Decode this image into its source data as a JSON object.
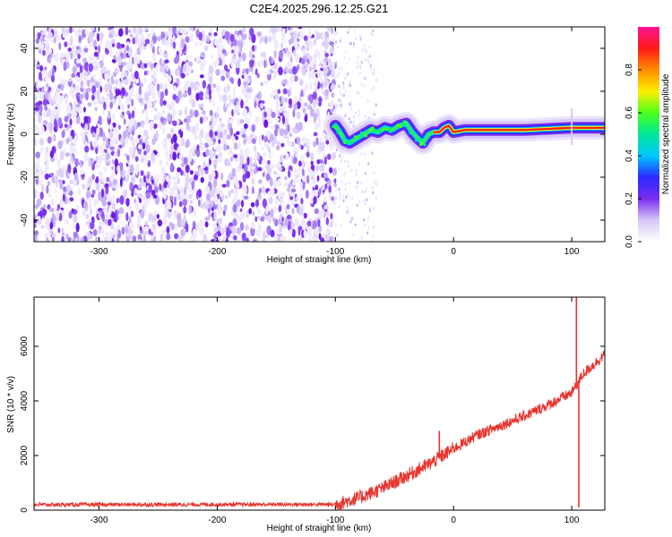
{
  "title": "C2E4.2025.296.12.25.G21",
  "chart_data": [
    {
      "type": "heatmap",
      "name": "spectrogram",
      "xlabel": "Height of straight line (km)",
      "ylabel": "Frequency (Hz)",
      "xlim": [
        -355,
        128
      ],
      "ylim": [
        -50,
        50
      ],
      "xticks": [
        -300,
        -200,
        -100,
        0,
        100
      ],
      "yticks": [
        -40,
        -20,
        0,
        20,
        40
      ],
      "noise_region_x": [
        -355,
        -100
      ],
      "sparse_noise_region_x": [
        -100,
        -65
      ],
      "ridge": [
        {
          "x": -100,
          "y": 4
        },
        {
          "x": -96,
          "y": 1
        },
        {
          "x": -92,
          "y": -3
        },
        {
          "x": -88,
          "y": -4
        },
        {
          "x": -82,
          "y": -2
        },
        {
          "x": -76,
          "y": 0
        },
        {
          "x": -70,
          "y": 2
        },
        {
          "x": -64,
          "y": 1
        },
        {
          "x": -58,
          "y": 3
        },
        {
          "x": -52,
          "y": 2
        },
        {
          "x": -46,
          "y": 4
        },
        {
          "x": -40,
          "y": 5
        },
        {
          "x": -35,
          "y": 1
        },
        {
          "x": -30,
          "y": -2
        },
        {
          "x": -26,
          "y": -4
        },
        {
          "x": -21,
          "y": 0
        },
        {
          "x": -17,
          "y": 1
        },
        {
          "x": -12,
          "y": 1
        },
        {
          "x": -8,
          "y": 3
        },
        {
          "x": -4,
          "y": 4
        },
        {
          "x": 0,
          "y": 1
        },
        {
          "x": 10,
          "y": 2
        },
        {
          "x": 20,
          "y": 2
        },
        {
          "x": 40,
          "y": 2
        },
        {
          "x": 60,
          "y": 2
        },
        {
          "x": 80,
          "y": 2.5
        },
        {
          "x": 100,
          "y": 3
        },
        {
          "x": 128,
          "y": 3
        }
      ]
    },
    {
      "type": "line",
      "name": "snr",
      "xlabel": "Height of straight line (km)",
      "ylabel": "SNR (10 * v/v)",
      "xlim": [
        -355,
        128
      ],
      "ylim": [
        0,
        7800
      ],
      "xticks": [
        -300,
        -200,
        -100,
        0,
        100
      ],
      "yticks": [
        0,
        2000,
        4000,
        6000
      ],
      "color": "#e8332c",
      "envelope": [
        {
          "x": -355,
          "y": 200
        },
        {
          "x": -100,
          "y": 210
        },
        {
          "x": -80,
          "y": 450
        },
        {
          "x": -60,
          "y": 800
        },
        {
          "x": -40,
          "y": 1250
        },
        {
          "x": -20,
          "y": 1700
        },
        {
          "x": 0,
          "y": 2250
        },
        {
          "x": 20,
          "y": 2750
        },
        {
          "x": 40,
          "y": 3100
        },
        {
          "x": 60,
          "y": 3450
        },
        {
          "x": 80,
          "y": 3850
        },
        {
          "x": 100,
          "y": 4300
        },
        {
          "x": 110,
          "y": 5000
        },
        {
          "x": 128,
          "y": 5700
        }
      ],
      "spikes": [
        {
          "x": -12,
          "y": 2900
        },
        {
          "x": 104,
          "y": 7800
        },
        {
          "x": 106,
          "y": 100
        }
      ]
    }
  ],
  "colorbar": {
    "label": "Normalized spectral amplitude",
    "ticks": [
      "0.0",
      "0.2",
      "0.4",
      "0.6",
      "0.8"
    ],
    "tick_values": [
      0,
      0.2,
      0.4,
      0.6,
      0.8
    ],
    "range": [
      0,
      1
    ],
    "colors": [
      "#ffffff",
      "#d6c8f8",
      "#7a2cf0",
      "#2a2aff",
      "#00c8ff",
      "#00e898",
      "#4cff1c",
      "#ffee00",
      "#ff8c00",
      "#ff1a1a",
      "#ff1493"
    ]
  }
}
